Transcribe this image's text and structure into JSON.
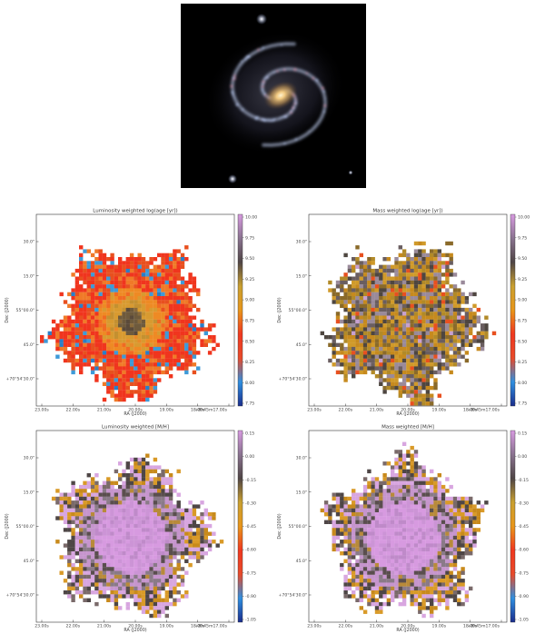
{
  "galaxy_image": {
    "alt_icon": "spiral-galaxy-photo"
  },
  "colormap": [
    "#1a2d8c",
    "#2f8fe0",
    "#e84a2a",
    "#f0381f",
    "#e8961a",
    "#c9a030",
    "#4f4545",
    "#8a7390",
    "#d79ae0"
  ],
  "panels": [
    {
      "title": "Luminosity weighted log(age [yr])",
      "ylabel": "Dec (J2000)",
      "xlabel": "RA (J2000)",
      "y_ticks": [
        "30.0\"",
        "15.0\"",
        "55°00.0\"",
        "45.0\"",
        "+70°54'30.0\""
      ],
      "x_ticks": [
        "23.00s",
        "22.00s",
        "21.00s",
        "20.00s",
        "19.00s",
        "18.00s",
        "+8h45m17.00s"
      ],
      "cbar_ticks": [
        "10.00",
        "9.75",
        "9.50",
        "9.25",
        "9.00",
        "8.75",
        "8.50",
        "8.25",
        "8.00",
        "7.75"
      ],
      "cbar_range": [
        7.75,
        10.0
      ]
    },
    {
      "title": "Mass weighted log(age [yr])",
      "ylabel": "Dec (J2000)",
      "xlabel": "RA (J2000)",
      "y_ticks": [
        "30.0\"",
        "15.0\"",
        "55°00.0\"",
        "45.0\"",
        "+70°54'30.0\""
      ],
      "x_ticks": [
        "23.00s",
        "22.00s",
        "21.00s",
        "20.00s",
        "19.00s",
        "18.00s",
        "+8h45m17.00s"
      ],
      "cbar_ticks": [
        "10.00",
        "9.75",
        "9.50",
        "9.25",
        "9.00",
        "8.75",
        "8.50",
        "8.25",
        "8.00",
        "7.75"
      ],
      "cbar_range": [
        7.75,
        10.0
      ]
    },
    {
      "title": "Luminosity weighted [M/H]",
      "ylabel": "Dec (J2000)",
      "xlabel": "RA (J2000)",
      "y_ticks": [
        "30.0\"",
        "15.0\"",
        "55°00.0\"",
        "45.0\"",
        "+70°54'30.0\""
      ],
      "x_ticks": [
        "23.00s",
        "22.00s",
        "21.00s",
        "20.00s",
        "19.00s",
        "18.00s",
        "+8h45m17.00s"
      ],
      "cbar_ticks": [
        "0.15",
        "0.00",
        "-0.15",
        "-0.30",
        "-0.45",
        "-0.60",
        "-0.75",
        "-0.90",
        "-1.05"
      ],
      "cbar_range": [
        -1.05,
        0.15
      ]
    },
    {
      "title": "Mass weighted [M/H]",
      "ylabel": "Dec (J2000)",
      "xlabel": "RA (J2000)",
      "y_ticks": [
        "30.0\"",
        "15.0\"",
        "55°00.0\"",
        "45.0\"",
        "+70°54'30.0\""
      ],
      "x_ticks": [
        "23.00s",
        "22.00s",
        "21.00s",
        "20.00s",
        "19.00s",
        "18.00s",
        "+8h45m17.00s"
      ],
      "cbar_ticks": [
        "0.15",
        "0.00",
        "-0.15",
        "-0.30",
        "-0.45",
        "-0.60",
        "-0.75",
        "-0.90",
        "-1.05"
      ],
      "cbar_range": [
        -1.05,
        0.15
      ]
    }
  ]
}
